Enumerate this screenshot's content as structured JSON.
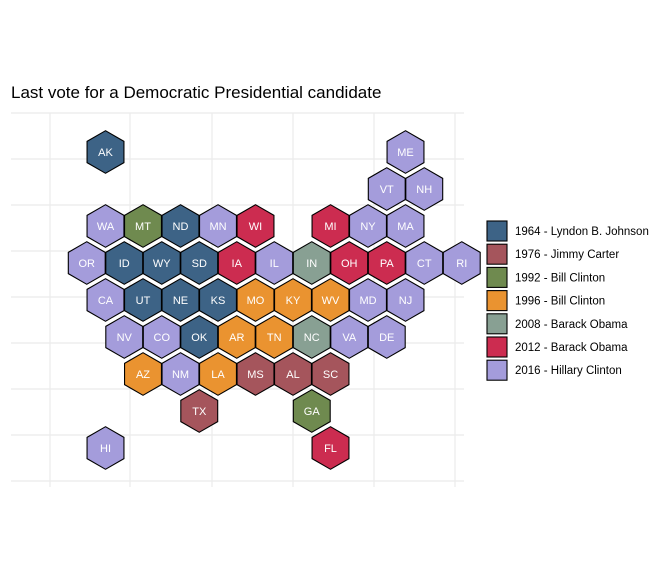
{
  "chart_data": {
    "type": "hexbin-map",
    "title": "Last vote for a Democratic Presidential candidate",
    "grid": true,
    "legend_position": "right",
    "categories": [
      {
        "label": "1964 - Lyndon B. Johnson",
        "color": "#3d6386"
      },
      {
        "label": "1976 - Jimmy Carter",
        "color": "#a5555c"
      },
      {
        "label": "1992 - Bill Clinton",
        "color": "#6f8a4f"
      },
      {
        "label": "1996 - Bill Clinton",
        "color": "#ea9330"
      },
      {
        "label": "2008 - Barack Obama",
        "color": "#88a093"
      },
      {
        "label": "2012 - Barack Obama",
        "color": "#cc2c50"
      },
      {
        "label": "2016 - Hillary Clinton",
        "color": "#a49cdb"
      }
    ],
    "states": [
      {
        "abbr": "AK",
        "col": 1,
        "row": 0,
        "cat": 0
      },
      {
        "abbr": "ME",
        "col": 9,
        "row": 0,
        "cat": 6
      },
      {
        "abbr": "VT",
        "col": 8.5,
        "row": 1,
        "cat": 6
      },
      {
        "abbr": "NH",
        "col": 9.5,
        "row": 1,
        "cat": 6
      },
      {
        "abbr": "WA",
        "col": 1,
        "row": 2,
        "cat": 6
      },
      {
        "abbr": "MT",
        "col": 2,
        "row": 2,
        "cat": 2
      },
      {
        "abbr": "ND",
        "col": 3,
        "row": 2,
        "cat": 0
      },
      {
        "abbr": "MN",
        "col": 4,
        "row": 2,
        "cat": 6
      },
      {
        "abbr": "WI",
        "col": 5,
        "row": 2,
        "cat": 5
      },
      {
        "abbr": "MI",
        "col": 7,
        "row": 2,
        "cat": 5
      },
      {
        "abbr": "NY",
        "col": 8,
        "row": 2,
        "cat": 6
      },
      {
        "abbr": "MA",
        "col": 9,
        "row": 2,
        "cat": 6
      },
      {
        "abbr": "OR",
        "col": 0.5,
        "row": 3,
        "cat": 6
      },
      {
        "abbr": "ID",
        "col": 1.5,
        "row": 3,
        "cat": 0
      },
      {
        "abbr": "WY",
        "col": 2.5,
        "row": 3,
        "cat": 0
      },
      {
        "abbr": "SD",
        "col": 3.5,
        "row": 3,
        "cat": 0
      },
      {
        "abbr": "IA",
        "col": 4.5,
        "row": 3,
        "cat": 5
      },
      {
        "abbr": "IL",
        "col": 5.5,
        "row": 3,
        "cat": 6
      },
      {
        "abbr": "IN",
        "col": 6.5,
        "row": 3,
        "cat": 4
      },
      {
        "abbr": "OH",
        "col": 7.5,
        "row": 3,
        "cat": 5
      },
      {
        "abbr": "PA",
        "col": 8.5,
        "row": 3,
        "cat": 5
      },
      {
        "abbr": "CT",
        "col": 9.5,
        "row": 3,
        "cat": 6
      },
      {
        "abbr": "RI",
        "col": 10.5,
        "row": 3,
        "cat": 6
      },
      {
        "abbr": "CA",
        "col": 1,
        "row": 4,
        "cat": 6
      },
      {
        "abbr": "UT",
        "col": 2,
        "row": 4,
        "cat": 0
      },
      {
        "abbr": "NE",
        "col": 3,
        "row": 4,
        "cat": 0
      },
      {
        "abbr": "KS",
        "col": 4,
        "row": 4,
        "cat": 0
      },
      {
        "abbr": "MO",
        "col": 5,
        "row": 4,
        "cat": 3
      },
      {
        "abbr": "KY",
        "col": 6,
        "row": 4,
        "cat": 3
      },
      {
        "abbr": "WV",
        "col": 7,
        "row": 4,
        "cat": 3
      },
      {
        "abbr": "MD",
        "col": 8,
        "row": 4,
        "cat": 6
      },
      {
        "abbr": "NJ",
        "col": 9,
        "row": 4,
        "cat": 6
      },
      {
        "abbr": "NV",
        "col": 1.5,
        "row": 5,
        "cat": 6
      },
      {
        "abbr": "CO",
        "col": 2.5,
        "row": 5,
        "cat": 6
      },
      {
        "abbr": "OK",
        "col": 3.5,
        "row": 5,
        "cat": 0
      },
      {
        "abbr": "AR",
        "col": 4.5,
        "row": 5,
        "cat": 3
      },
      {
        "abbr": "TN",
        "col": 5.5,
        "row": 5,
        "cat": 3
      },
      {
        "abbr": "NC",
        "col": 6.5,
        "row": 5,
        "cat": 4
      },
      {
        "abbr": "VA",
        "col": 7.5,
        "row": 5,
        "cat": 6
      },
      {
        "abbr": "DE",
        "col": 8.5,
        "row": 5,
        "cat": 6
      },
      {
        "abbr": "AZ",
        "col": 2,
        "row": 6,
        "cat": 3
      },
      {
        "abbr": "NM",
        "col": 3,
        "row": 6,
        "cat": 6
      },
      {
        "abbr": "LA",
        "col": 4,
        "row": 6,
        "cat": 3
      },
      {
        "abbr": "MS",
        "col": 5,
        "row": 6,
        "cat": 1
      },
      {
        "abbr": "AL",
        "col": 6,
        "row": 6,
        "cat": 1
      },
      {
        "abbr": "SC",
        "col": 7,
        "row": 6,
        "cat": 1
      },
      {
        "abbr": "TX",
        "col": 3.5,
        "row": 7,
        "cat": 1
      },
      {
        "abbr": "GA",
        "col": 6.5,
        "row": 7,
        "cat": 2
      },
      {
        "abbr": "HI",
        "col": 1,
        "row": 8,
        "cat": 6
      },
      {
        "abbr": "FL",
        "col": 7,
        "row": 8,
        "cat": 5
      }
    ]
  }
}
